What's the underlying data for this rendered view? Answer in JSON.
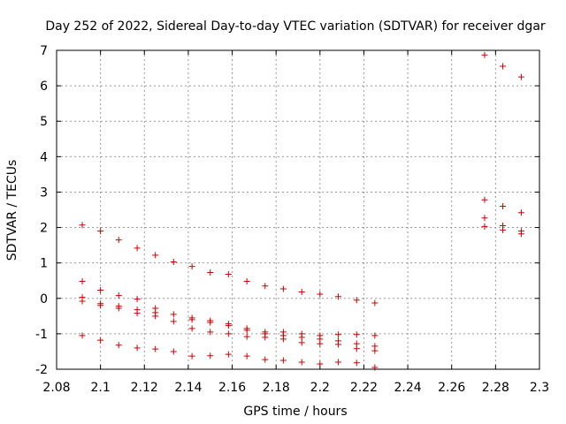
{
  "chart_data": {
    "type": "scatter",
    "title": "Day 252 of 2022, Sidereal Day-to-day VTEC variation (SDTVAR) for receiver dgar",
    "xlabel": "GPS time / hours",
    "ylabel": "SDTVAR / TECUs",
    "xlim": [
      2.08,
      2.3
    ],
    "ylim": [
      -2,
      7
    ],
    "xticks": [
      "2.08",
      "2.1",
      "2.12",
      "2.14",
      "2.16",
      "2.18",
      "2.2",
      "2.22",
      "2.24",
      "2.26",
      "2.28",
      "2.3"
    ],
    "yticks": [
      "-2",
      "-1",
      "0",
      "1",
      "2",
      "3",
      "4",
      "5",
      "6",
      "7"
    ],
    "grid": true,
    "marker": "+",
    "marker_color": "#cc0000",
    "points": [
      [
        2.0917,
        2.07
      ],
      [
        2.0917,
        0.48
      ],
      [
        2.0917,
        0.03
      ],
      [
        2.0917,
        -0.08
      ],
      [
        2.0917,
        -1.05
      ],
      [
        2.1,
        1.9
      ],
      [
        2.1,
        0.23
      ],
      [
        2.1,
        -0.15
      ],
      [
        2.1,
        -0.2
      ],
      [
        2.1,
        -1.18
      ],
      [
        2.1083,
        1.65
      ],
      [
        2.1083,
        0.08
      ],
      [
        2.1083,
        -0.22
      ],
      [
        2.1083,
        -0.28
      ],
      [
        2.1083,
        -1.32
      ],
      [
        2.1167,
        1.42
      ],
      [
        2.1167,
        -0.02
      ],
      [
        2.1167,
        -0.32
      ],
      [
        2.1167,
        -0.42
      ],
      [
        2.1167,
        -1.4
      ],
      [
        2.125,
        1.22
      ],
      [
        2.125,
        -0.28
      ],
      [
        2.125,
        -0.4
      ],
      [
        2.125,
        -0.5
      ],
      [
        2.125,
        -1.43
      ],
      [
        2.1333,
        1.03
      ],
      [
        2.1333,
        -0.45
      ],
      [
        2.1333,
        -0.65
      ],
      [
        2.1333,
        -1.5
      ],
      [
        2.1417,
        0.9
      ],
      [
        2.1417,
        -0.55
      ],
      [
        2.1417,
        -0.6
      ],
      [
        2.1417,
        -0.85
      ],
      [
        2.1417,
        -1.63
      ],
      [
        2.15,
        0.73
      ],
      [
        2.15,
        -0.63
      ],
      [
        2.15,
        -0.68
      ],
      [
        2.15,
        -0.95
      ],
      [
        2.15,
        -1.62
      ],
      [
        2.1583,
        0.68
      ],
      [
        2.1583,
        -0.72
      ],
      [
        2.1583,
        -0.77
      ],
      [
        2.1583,
        -1.0
      ],
      [
        2.1583,
        -1.58
      ],
      [
        2.1667,
        0.48
      ],
      [
        2.1667,
        -0.85
      ],
      [
        2.1667,
        -0.9
      ],
      [
        2.1667,
        -1.08
      ],
      [
        2.1667,
        -1.63
      ],
      [
        2.175,
        0.35
      ],
      [
        2.175,
        -0.95
      ],
      [
        2.175,
        -1.0
      ],
      [
        2.175,
        -1.1
      ],
      [
        2.175,
        -1.73
      ],
      [
        2.1833,
        0.27
      ],
      [
        2.1833,
        -0.95
      ],
      [
        2.1833,
        -1.05
      ],
      [
        2.1833,
        -1.15
      ],
      [
        2.1833,
        -1.75
      ],
      [
        2.1917,
        0.18
      ],
      [
        2.1917,
        -1.0
      ],
      [
        2.1917,
        -1.1
      ],
      [
        2.1917,
        -1.25
      ],
      [
        2.1917,
        -1.8
      ],
      [
        2.2,
        0.12
      ],
      [
        2.2,
        -1.05
      ],
      [
        2.2,
        -1.15
      ],
      [
        2.2,
        -1.28
      ],
      [
        2.2,
        -1.85
      ],
      [
        2.2083,
        0.05
      ],
      [
        2.2083,
        -1.02
      ],
      [
        2.2083,
        -1.2
      ],
      [
        2.2083,
        -1.3
      ],
      [
        2.2083,
        -1.8
      ],
      [
        2.2167,
        -0.05
      ],
      [
        2.2167,
        -1.02
      ],
      [
        2.2167,
        -1.28
      ],
      [
        2.2167,
        -1.42
      ],
      [
        2.2167,
        -1.82
      ],
      [
        2.225,
        -0.13
      ],
      [
        2.225,
        -1.05
      ],
      [
        2.225,
        -1.35
      ],
      [
        2.225,
        -1.48
      ],
      [
        2.225,
        -1.95
      ],
      [
        2.275,
        6.87
      ],
      [
        2.275,
        2.78
      ],
      [
        2.275,
        2.27
      ],
      [
        2.275,
        2.03
      ],
      [
        2.2833,
        6.55
      ],
      [
        2.2833,
        2.6
      ],
      [
        2.2833,
        2.05
      ],
      [
        2.2833,
        1.93
      ],
      [
        2.2917,
        6.25
      ],
      [
        2.2917,
        2.42
      ],
      [
        2.2917,
        1.9
      ],
      [
        2.2917,
        1.82
      ]
    ]
  }
}
